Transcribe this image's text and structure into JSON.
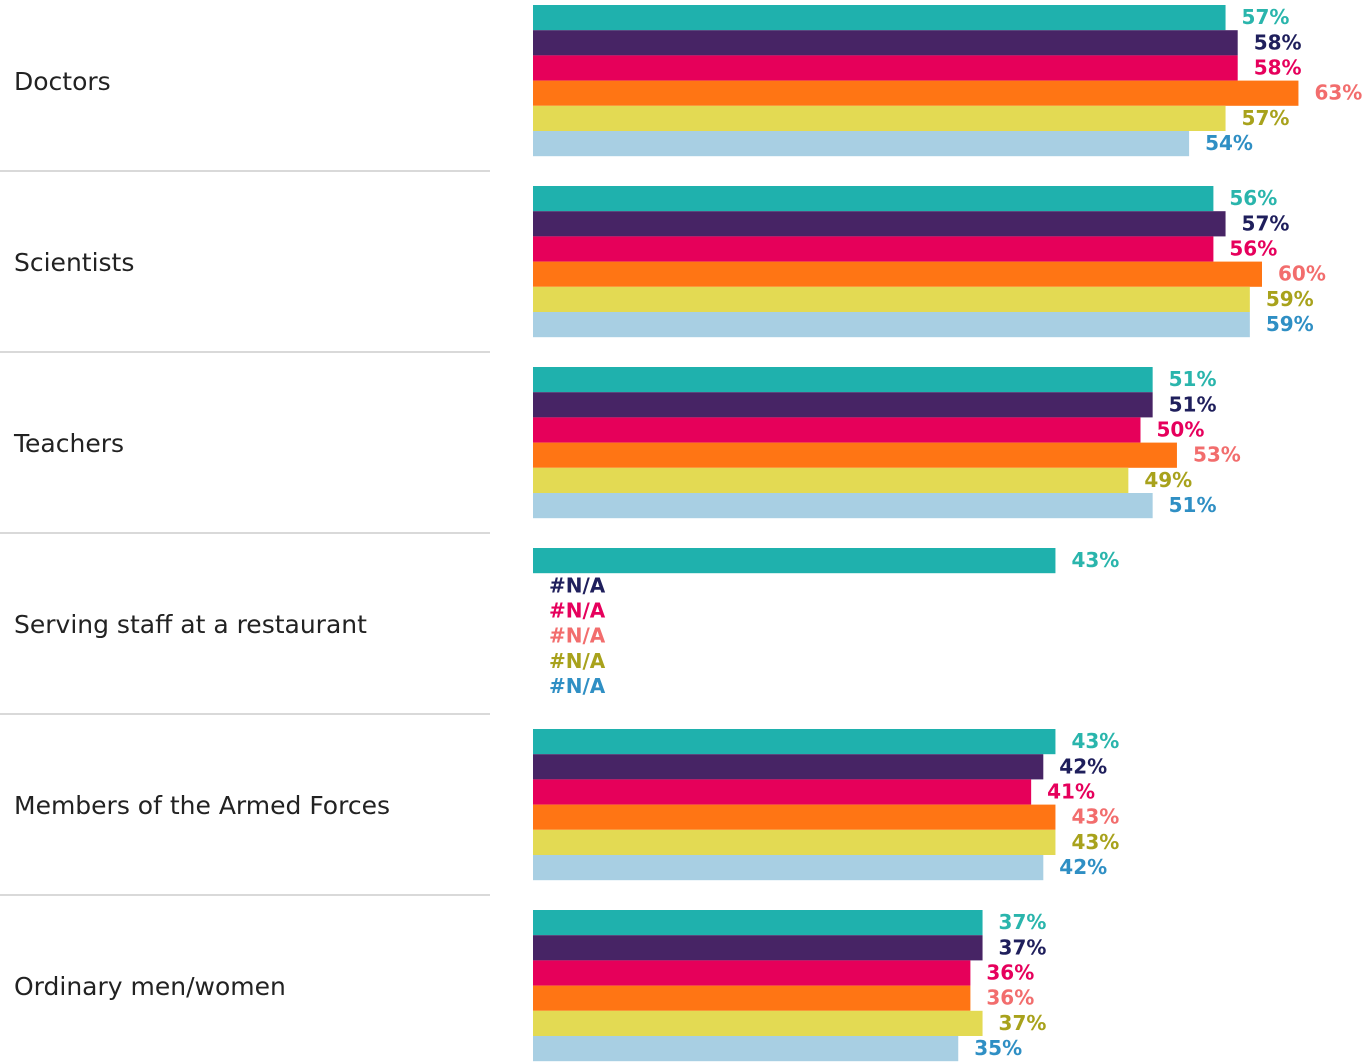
{
  "chart_data": {
    "type": "hbar",
    "categories": [
      "Doctors",
      "Scientists",
      "Teachers",
      "Serving staff at a restaurant",
      "Members of the Armed Forces",
      "Ordinary men/women"
    ],
    "series": [
      {
        "color": "#1fb1ad",
        "label_color": "#2ab5ac",
        "values": [
          57,
          56,
          51,
          43,
          43,
          37
        ],
        "value_labels": [
          "57%",
          "56%",
          "51%",
          "43%",
          "43%",
          "37%"
        ]
      },
      {
        "color": "#472465",
        "label_color": "#1f1f5c",
        "values": [
          58,
          57,
          51,
          null,
          42,
          37
        ],
        "value_labels": [
          "58%",
          "57%",
          "51%",
          "#N/A",
          "42%",
          "37%"
        ]
      },
      {
        "color": "#e6005a",
        "label_color": "#e6005c",
        "values": [
          58,
          56,
          50,
          null,
          41,
          36
        ],
        "value_labels": [
          "58%",
          "56%",
          "50%",
          "#N/A",
          "41%",
          "36%"
        ]
      },
      {
        "color": "#ff7514",
        "label_color": "#f26d6d",
        "values": [
          63,
          60,
          53,
          null,
          43,
          36
        ],
        "value_labels": [
          "63%",
          "60%",
          "53%",
          "#N/A",
          "43%",
          "36%"
        ]
      },
      {
        "color": "#e3da53",
        "label_color": "#a8a21c",
        "values": [
          57,
          59,
          49,
          null,
          43,
          37
        ],
        "value_labels": [
          "57%",
          "59%",
          "49%",
          "#N/A",
          "43%",
          "37%"
        ]
      },
      {
        "color": "#a8cfe3",
        "label_color": "#2f8fc4",
        "values": [
          54,
          59,
          51,
          null,
          42,
          35
        ],
        "value_labels": [
          "54%",
          "59%",
          "51%",
          "#N/A",
          "42%",
          "35%"
        ]
      }
    ]
  }
}
